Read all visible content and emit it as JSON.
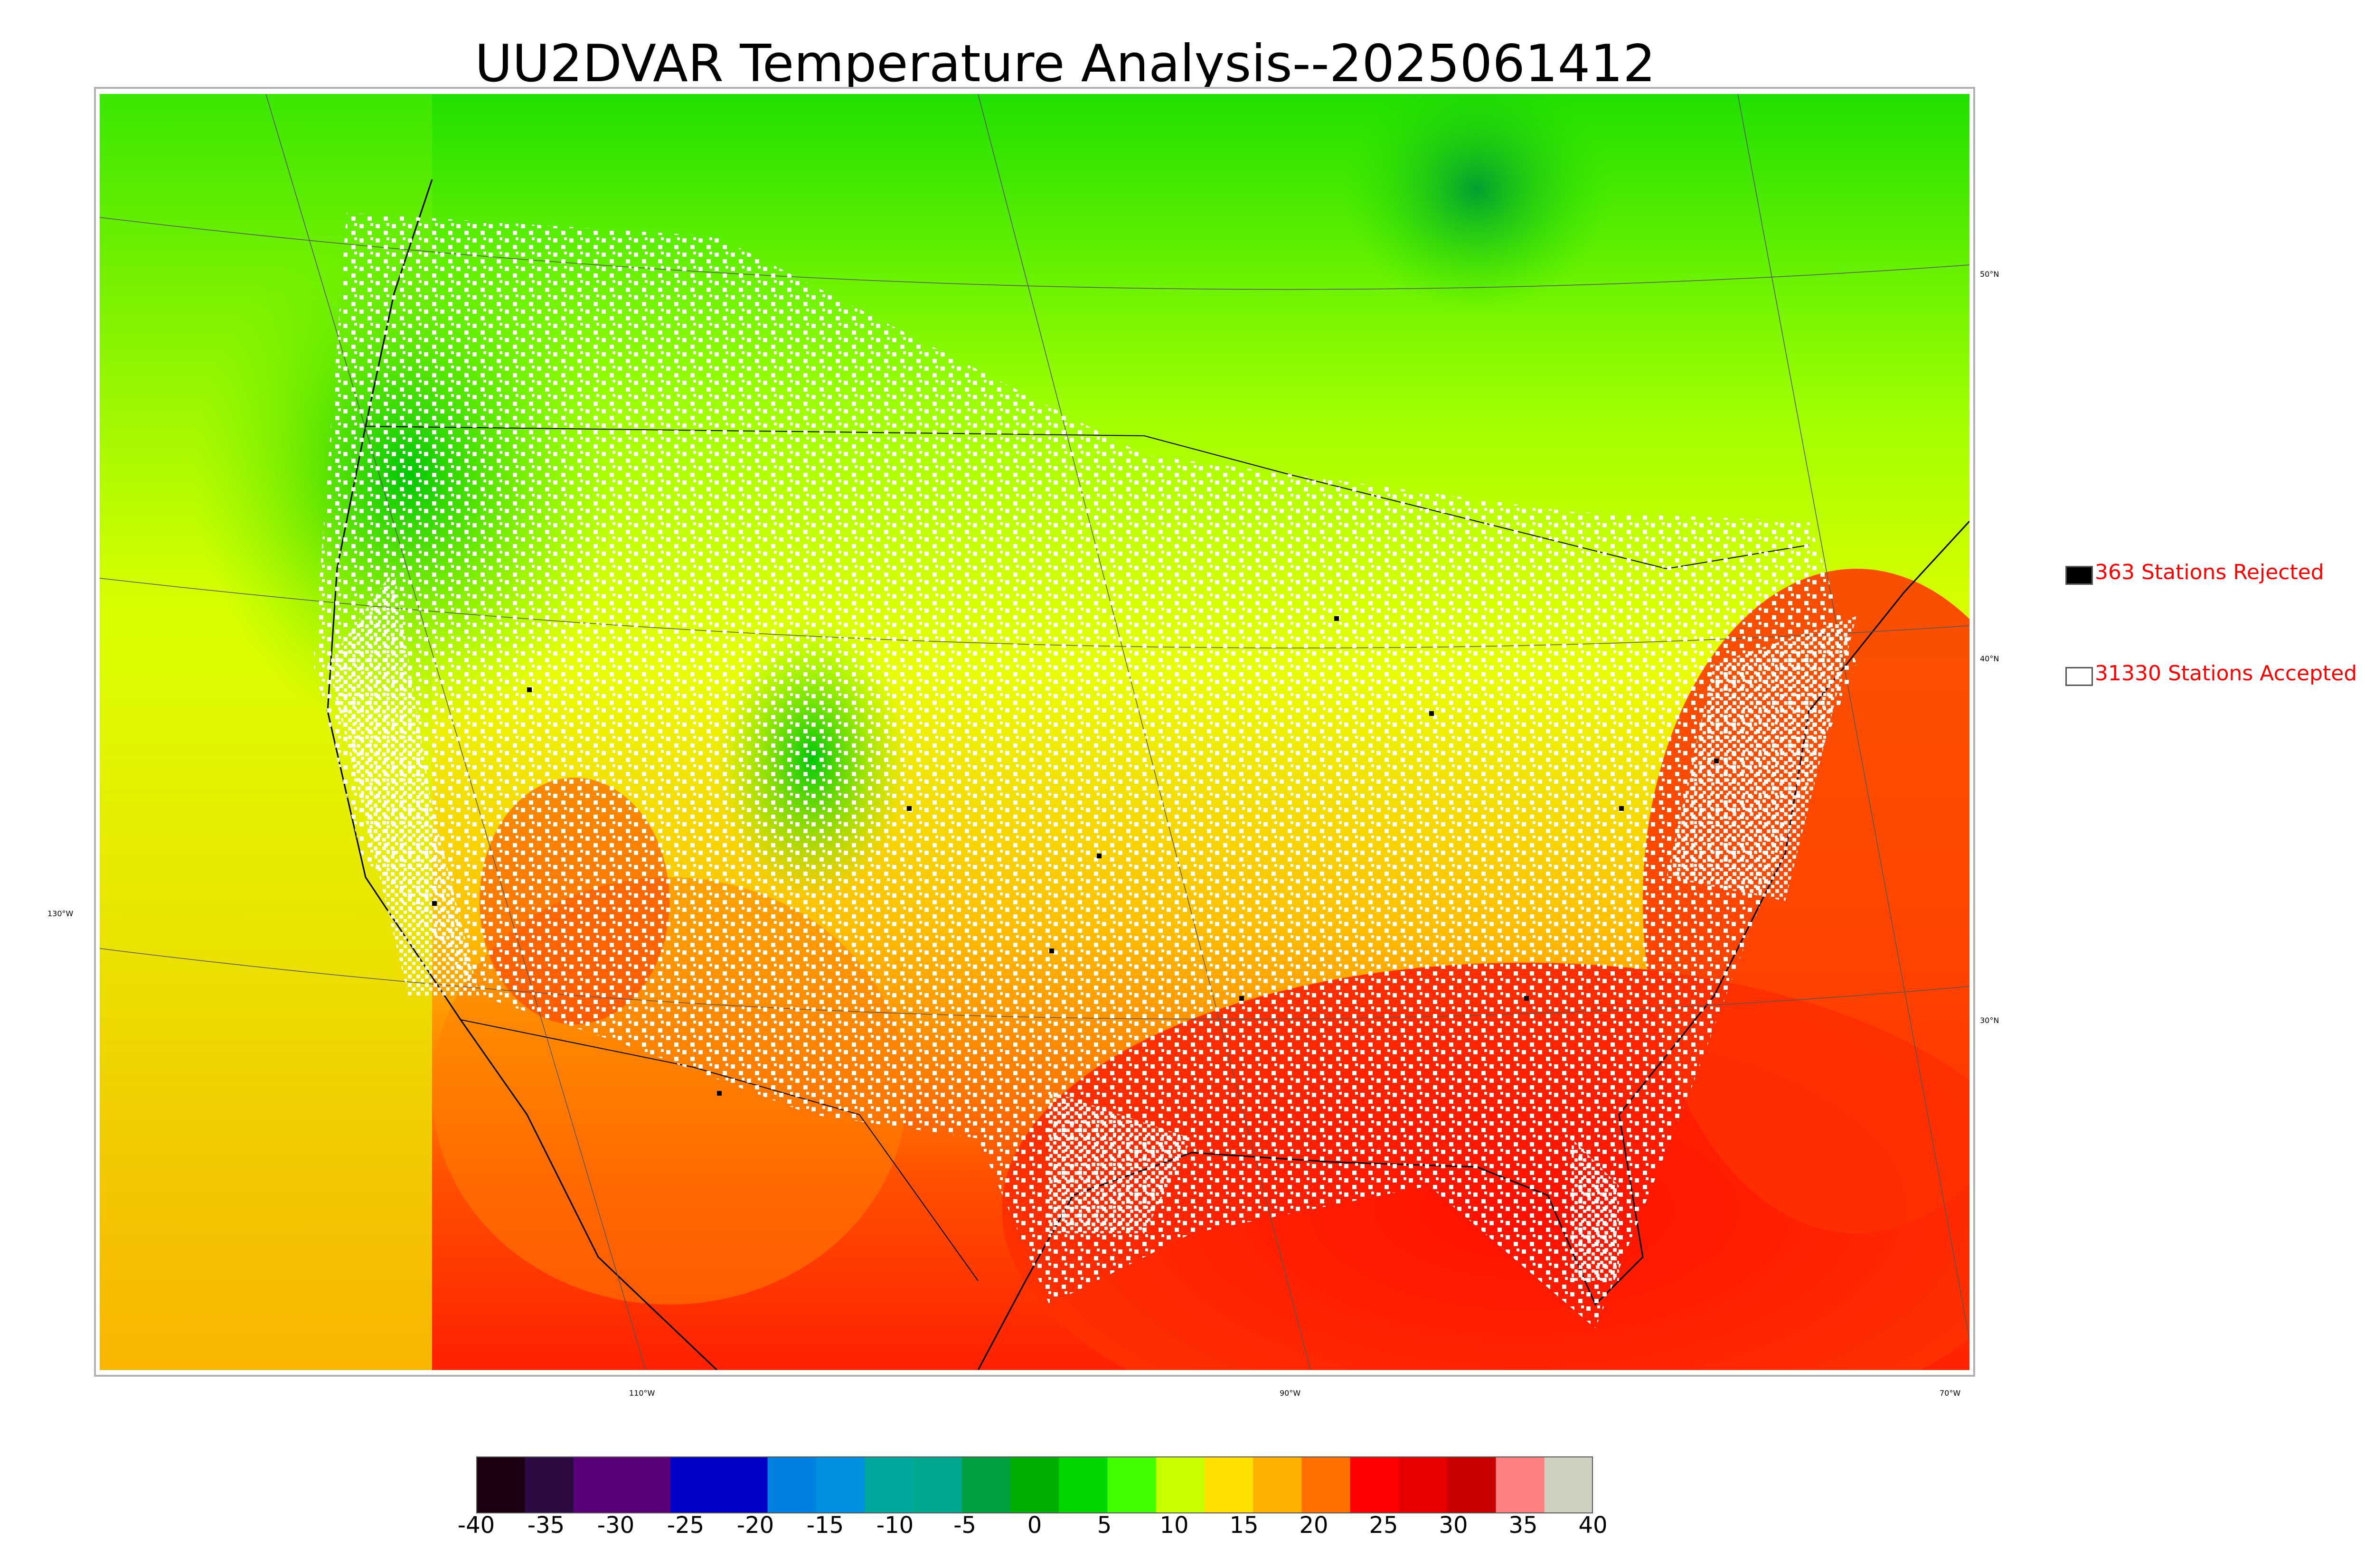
{
  "title": "UU2DVAR Temperature Analysis--2025061412",
  "graticule": {
    "lat_labels": [
      "50°N",
      "40°N",
      "30°N"
    ],
    "lon_labels": [
      "130°W",
      "110°W",
      "90°W",
      "70°W"
    ]
  },
  "legend": {
    "rejected": {
      "label": "363 Stations Rejected",
      "color": "#000000"
    },
    "accepted": {
      "label": "31330 Stations Accepted",
      "color": "#ffffff"
    },
    "text_color": "#ff0000"
  },
  "colorbar": {
    "min": -40,
    "max": 40,
    "ticks": [
      "-40",
      "-35",
      "-30",
      "-25",
      "-20",
      "-15",
      "-10",
      "-5",
      "0",
      "5",
      "10",
      "15",
      "20",
      "25",
      "30",
      "35",
      "40"
    ],
    "colors": [
      "#1a0010",
      "#2a0a40",
      "#5a0078",
      "#5a0078",
      "#0000c8",
      "#0000c8",
      "#0080e0",
      "#0090e0",
      "#00a8a0",
      "#00a890",
      "#00a040",
      "#00b000",
      "#00d800",
      "#40ff00",
      "#c8ff00",
      "#ffe000",
      "#ffb000",
      "#ff7000",
      "#ff0000",
      "#e80000",
      "#c80000",
      "#ff8080",
      "#d0d0c0"
    ]
  },
  "map": {
    "background_colors": {
      "ocean_east": "#ff2000",
      "ocean_west": "#e8f000",
      "north": "#20e000"
    }
  }
}
